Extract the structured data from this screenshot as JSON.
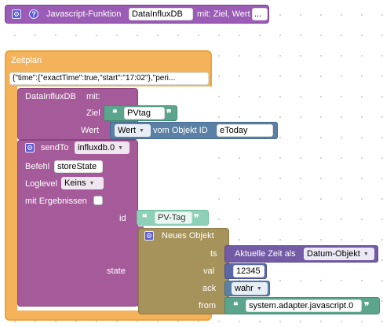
{
  "function_block": {
    "title": "Javascript-Funktion",
    "name_value": "DataInfluxDB",
    "params": "mit: Ziel, Wert",
    "more_label": "..."
  },
  "schedule_block": {
    "title": "Zeitplan",
    "config_value": "{\"time\":{\"exactTime\":true,\"start\":\"17:02\"},\"peri..."
  },
  "call_block": {
    "name": "DataInfluxDB",
    "with_label": "mit:",
    "target_label": "Ziel",
    "target_value": "PVtag",
    "value_label": "Wert",
    "value_dropdown": "Wert",
    "of_object_label": "vom Objekt ID",
    "object_id": "eToday"
  },
  "sendto_block": {
    "title": "sendTo",
    "adapter": "influxdb.0",
    "command_label": "Befehl",
    "command_value": "storeState",
    "loglevel_label": "Loglevel",
    "loglevel_value": "Keins",
    "results_label": "mit Ergebnissen",
    "id_label": "id",
    "id_value": "PV-Tag",
    "state_label": "state"
  },
  "new_object_block": {
    "title": "Neues Objekt",
    "ts_label": "ts",
    "ts_text": "Aktuelle Zeit als",
    "ts_format": "Datum-Objekt",
    "val_label": "val",
    "val_value": "12345",
    "ack_label": "ack",
    "ack_value": "wahr",
    "from_label": "from",
    "from_value": "system.adapter.javascript.0"
  },
  "quote_open": "❝",
  "quote_close": "❞",
  "colors": {
    "function_purple": "#9a5cb4",
    "schedule_amber": "#f4b25a",
    "call_purple": "#a55b9a",
    "sendto_purple": "#a55b9a",
    "text_teal": "#5ba58c",
    "text_teal_light": "#8fd1b8",
    "object_steel": "#5b80a5",
    "object_olive": "#a5935b",
    "time_purple": "#745ba5",
    "number_blue": "#5b67a5",
    "bool_blue": "#5b80a5"
  }
}
